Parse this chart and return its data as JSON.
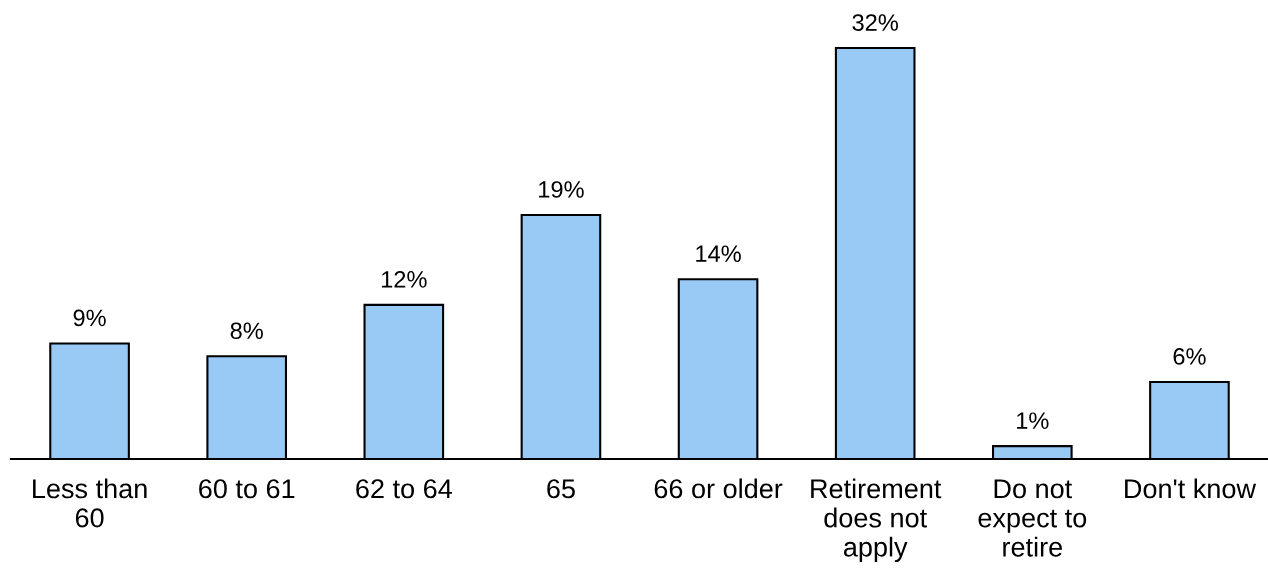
{
  "chart_data": {
    "type": "bar",
    "categories": [
      "Less than\n60",
      "60 to 61",
      "62 to 64",
      "65",
      "66 or older",
      "Retirement\ndoes not\napply",
      "Do not\nexpect to\nretire",
      "Don't know"
    ],
    "values": [
      9,
      8,
      12,
      19,
      14,
      32,
      1,
      6
    ],
    "value_labels": [
      "9%",
      "8%",
      "12%",
      "19%",
      "14%",
      "32%",
      "1%",
      "6%"
    ],
    "color": "#99c9f5",
    "tick_labels": "x"
  }
}
